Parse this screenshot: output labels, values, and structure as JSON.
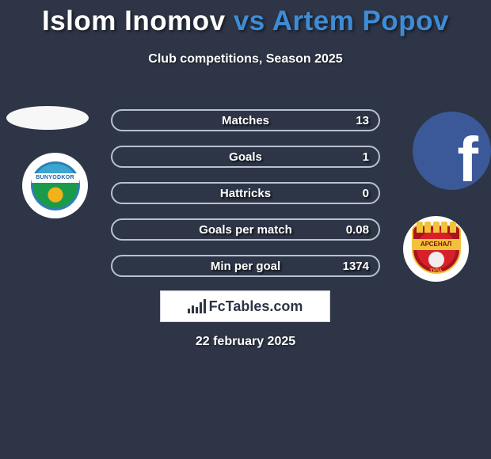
{
  "colors": {
    "background": "#2d3546",
    "title_p1": "#ffffff",
    "title_accent": "#3f8cd6",
    "row_border": "#b6c1d2",
    "text": "#ffffff",
    "brand_bg": "#ffffff",
    "brand_fg": "#2d3546"
  },
  "title": {
    "player1": "Islom Inomov",
    "vs": "vs",
    "player2": "Artem Popov"
  },
  "subtitle": "Club competitions, Season 2025",
  "stats": {
    "rows": [
      {
        "label": "Matches",
        "value": "13"
      },
      {
        "label": "Goals",
        "value": "1"
      },
      {
        "label": "Hattricks",
        "value": "0"
      },
      {
        "label": "Goals per match",
        "value": "0.08"
      },
      {
        "label": "Min per goal",
        "value": "1374"
      }
    ]
  },
  "left_club": {
    "badge_text": "BUNYODKOR"
  },
  "right_club": {
    "badge_text": "АРСЕНАЛ",
    "badge_sub": "ТУЛА"
  },
  "brand": {
    "prefix": "Fc",
    "suffix": "Tables.com"
  },
  "date": "22 february 2025"
}
